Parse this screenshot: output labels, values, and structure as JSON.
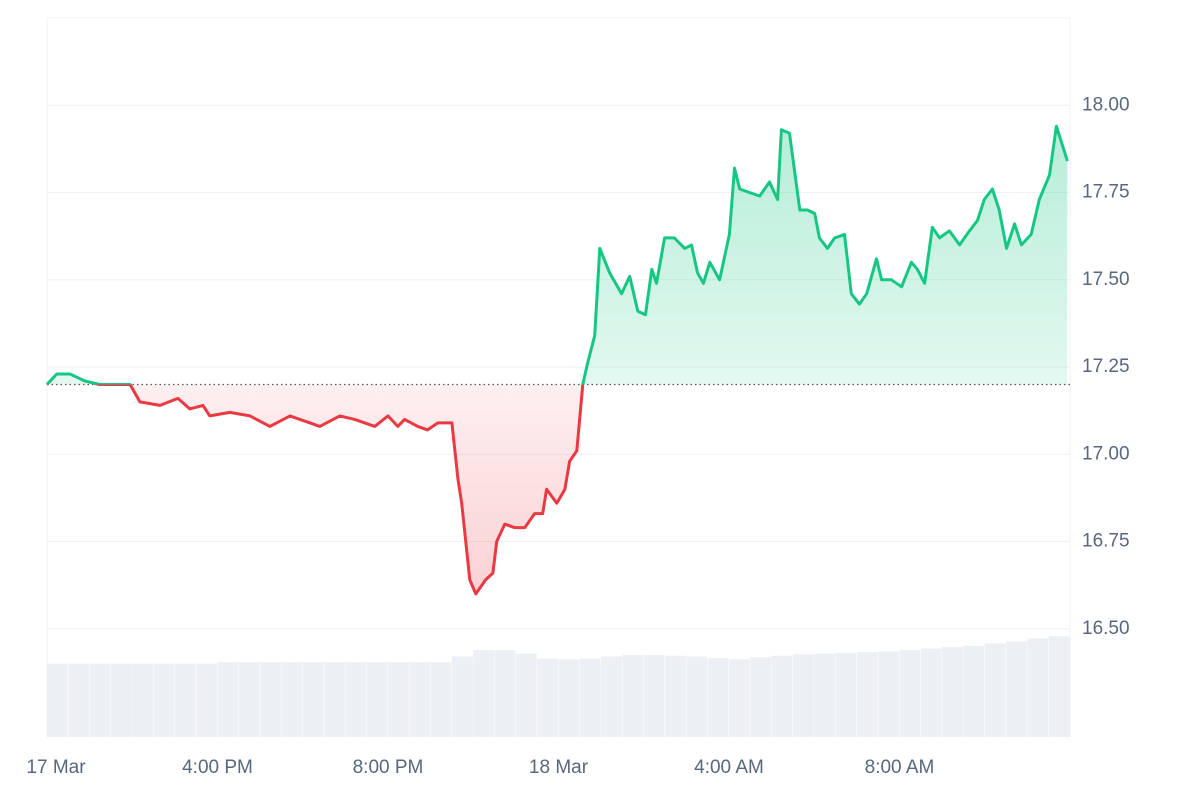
{
  "chart_data": {
    "type": "line",
    "x": [
      12.0,
      12.23,
      12.54,
      12.89,
      13.24,
      13.59,
      13.95,
      14.18,
      14.65,
      15.07,
      15.35,
      15.66,
      15.82,
      16.29,
      16.76,
      17.23,
      17.7,
      18.17,
      18.4,
      18.87,
      19.22,
      19.69,
      20.0,
      20.23,
      20.39,
      20.7,
      20.93,
      21.17,
      21.5,
      21.64,
      21.73,
      21.92,
      22.06,
      22.29,
      22.46,
      22.55,
      22.74,
      22.97,
      23.21,
      23.44,
      23.63,
      23.72,
      23.96,
      24.15,
      24.26,
      24.43,
      24.57,
      24.68,
      24.85,
      24.97,
      25.2,
      25.48,
      25.67,
      25.86,
      26.04,
      26.19,
      26.3,
      26.49,
      26.72,
      26.96,
      27.12,
      27.26,
      27.4,
      27.55,
      27.78,
      28.01,
      28.13,
      28.25,
      28.48,
      28.72,
      28.95,
      29.14,
      29.23,
      29.42,
      29.66,
      29.84,
      30.01,
      30.12,
      30.31,
      30.48,
      30.71,
      30.87,
      31.06,
      31.23,
      31.46,
      31.58,
      31.81,
      32.05,
      32.28,
      32.42,
      32.59,
      32.77,
      32.94,
      33.17,
      33.41,
      33.64,
      33.83,
      33.99,
      34.18,
      34.34,
      34.51,
      34.7,
      34.86,
      35.09,
      35.28,
      35.52,
      35.68,
      35.94
    ],
    "values": [
      17.2,
      17.23,
      17.23,
      17.21,
      17.2,
      17.2,
      17.2,
      17.15,
      17.14,
      17.16,
      17.13,
      17.14,
      17.11,
      17.12,
      17.11,
      17.08,
      17.11,
      17.09,
      17.08,
      17.11,
      17.1,
      17.08,
      17.11,
      17.08,
      17.1,
      17.08,
      17.07,
      17.09,
      17.09,
      16.93,
      16.86,
      16.64,
      16.6,
      16.64,
      16.66,
      16.75,
      16.8,
      16.79,
      16.79,
      16.83,
      16.83,
      16.9,
      16.86,
      16.9,
      16.98,
      17.01,
      17.2,
      17.26,
      17.34,
      17.59,
      17.52,
      17.46,
      17.51,
      17.41,
      17.4,
      17.53,
      17.49,
      17.62,
      17.62,
      17.59,
      17.6,
      17.52,
      17.49,
      17.55,
      17.5,
      17.63,
      17.82,
      17.76,
      17.75,
      17.74,
      17.78,
      17.73,
      17.93,
      17.92,
      17.7,
      17.7,
      17.69,
      17.62,
      17.59,
      17.62,
      17.63,
      17.46,
      17.43,
      17.46,
      17.56,
      17.5,
      17.5,
      17.48,
      17.55,
      17.53,
      17.49,
      17.65,
      17.62,
      17.64,
      17.6,
      17.64,
      17.67,
      17.73,
      17.76,
      17.7,
      17.59,
      17.66,
      17.6,
      17.63,
      17.73,
      17.8,
      17.94,
      17.84
    ],
    "baseline": 17.2,
    "up_color": "#16c784",
    "down_color": "#ea3943",
    "volume": {
      "x": [
        12,
        12.5,
        13,
        13.5,
        14,
        14.5,
        15,
        15.5,
        16,
        16.5,
        17,
        17.5,
        18,
        18.5,
        19,
        19.5,
        20,
        20.5,
        21,
        21.5,
        22,
        22.5,
        23,
        23.5,
        24,
        24.5,
        25,
        25.5,
        26,
        26.5,
        27,
        27.5,
        28,
        28.5,
        29,
        29.5,
        30,
        30.5,
        31,
        31.5,
        32,
        32.5,
        33,
        33.5,
        34,
        34.5,
        35,
        35.5
      ],
      "values": [
        10.2,
        10.2,
        10.2,
        10.2,
        10.2,
        10.2,
        10.2,
        10.2,
        10.4,
        10.4,
        10.4,
        10.4,
        10.4,
        10.4,
        10.4,
        10.4,
        10.4,
        10.4,
        10.4,
        11.2,
        12.1,
        12.1,
        11.6,
        10.9,
        10.8,
        10.9,
        11.2,
        11.4,
        11.4,
        11.3,
        11.2,
        11.0,
        10.8,
        11.1,
        11.3,
        11.5,
        11.6,
        11.7,
        11.8,
        11.9,
        12.1,
        12.3,
        12.5,
        12.7,
        13.0,
        13.3,
        13.7,
        14.0
      ],
      "color": "#eceff3",
      "axis": "y2"
    },
    "y2lim": [
      0,
      100
    ],
    "xlim": [
      12,
      36
    ],
    "xticks": [
      {
        "value": 12,
        "label": "17 Mar"
      },
      {
        "value": 16,
        "label": "4:00 PM"
      },
      {
        "value": 20,
        "label": "8:00 PM"
      },
      {
        "value": 24,
        "label": "18 Mar"
      },
      {
        "value": 28,
        "label": "4:00 AM"
      },
      {
        "value": 32,
        "label": "8:00 AM"
      }
    ],
    "ylim": [
      16.19,
      18.25
    ],
    "yticks": [
      {
        "value": 16.5,
        "label": "16.50"
      },
      16.75,
      {
        "value": 17,
        "label": "17.00"
      },
      17.25,
      {
        "value": 17.5,
        "label": "17.50"
      },
      17.75,
      {
        "value": 18,
        "label": "18.00"
      }
    ],
    "grid": true
  }
}
